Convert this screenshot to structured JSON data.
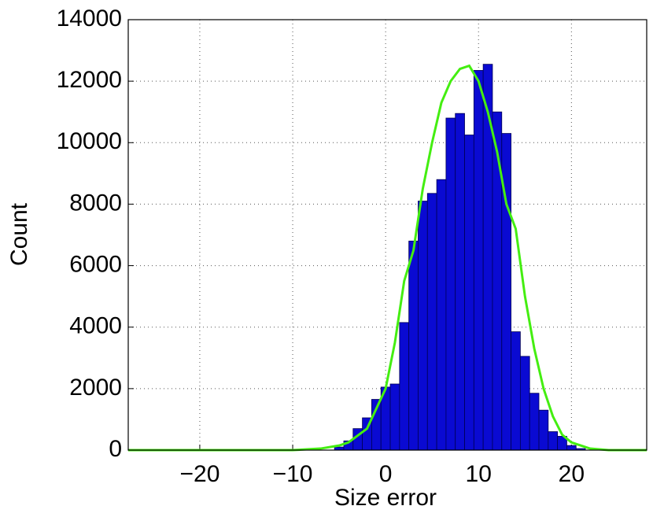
{
  "chart_data": {
    "type": "histogram",
    "xlabel": "Size error",
    "ylabel": "Count",
    "bins": [
      -5.5,
      -4.5,
      -3.5,
      -2.5,
      -1.5,
      -0.5,
      0.5,
      1.5,
      2.5,
      3.5,
      4.5,
      5.5,
      6.5,
      7.5,
      8.5,
      9.5,
      10.5,
      11.5,
      12.5,
      13.5,
      14.5,
      15.5,
      16.5,
      17.5,
      18.5,
      19.5,
      20.5,
      21.5
    ],
    "counts": [
      100,
      300,
      700,
      1050,
      1650,
      2050,
      2150,
      4150,
      6800,
      8100,
      8350,
      8800,
      10800,
      10950,
      10250,
      12350,
      12550,
      11000,
      10300,
      3850,
      3050,
      1850,
      1300,
      600,
      450,
      150,
      50
    ],
    "color": "#0a0ad2",
    "line": {
      "color": "#44ee11",
      "x": [
        -27.7,
        -10,
        -7,
        -5,
        -4,
        -2,
        0,
        1,
        2,
        3,
        4,
        5,
        6,
        7,
        8,
        9,
        10,
        11,
        12,
        13,
        14,
        15,
        16,
        17,
        18,
        19,
        20,
        22,
        24,
        28.1
      ],
      "values": [
        0,
        0,
        50,
        150,
        250,
        700,
        2000,
        3500,
        5500,
        6500,
        8500,
        10000,
        11300,
        12000,
        12400,
        12500,
        12000,
        11000,
        9700,
        8000,
        7200,
        5000,
        3300,
        2000,
        1100,
        500,
        250,
        50,
        0,
        0
      ]
    },
    "xlim": [
      -27.7,
      28.1
    ],
    "ylim": [
      0,
      14000
    ],
    "xticks": [
      {
        "value": -20,
        "label": "−20"
      },
      {
        "value": -10,
        "label": "−10"
      },
      0,
      10,
      20
    ],
    "yticks": [
      0,
      2000,
      4000,
      6000,
      8000,
      10000,
      12000,
      14000
    ],
    "grid": true
  }
}
